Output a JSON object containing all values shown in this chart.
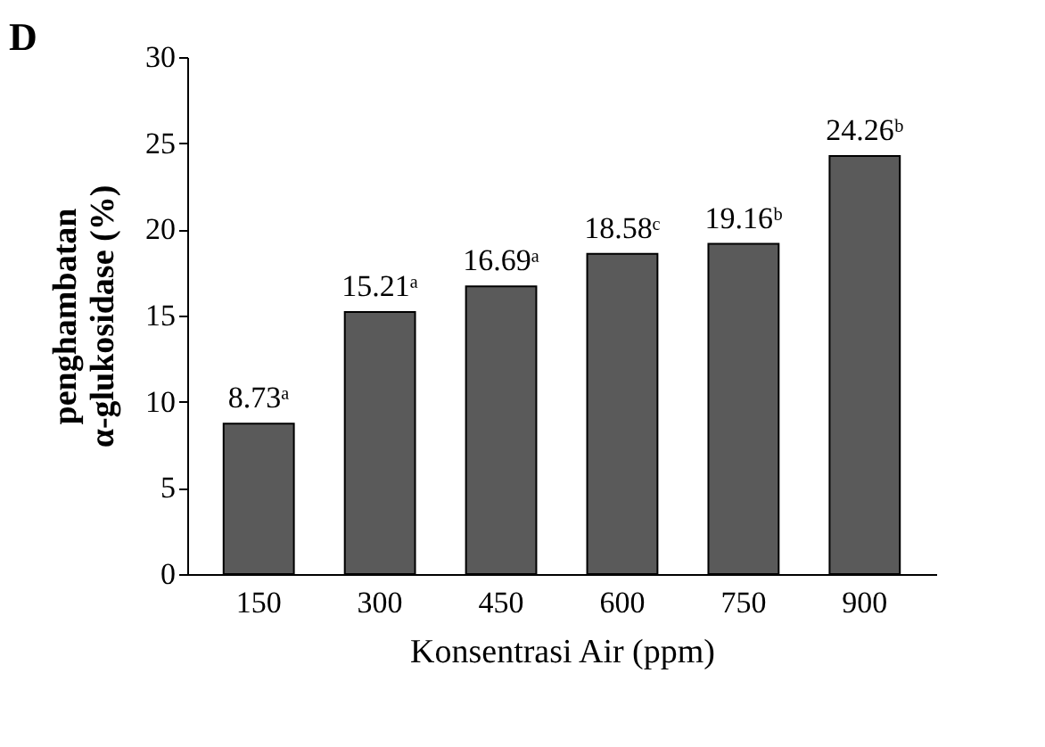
{
  "chart_data": {
    "type": "bar",
    "title": "D",
    "xlabel": "Konsentrasi Air (ppm)",
    "ylabel": "penghambatan\nα-glukosidase (%)",
    "categories": [
      "150",
      "300",
      "450",
      "600",
      "750",
      "900"
    ],
    "values": [
      8.73,
      15.21,
      16.69,
      18.58,
      19.16,
      24.26
    ],
    "value_labels": [
      "8.73ᵃ",
      "15.21ᵃ",
      "16.69ᵃ",
      "18.58ᶜ",
      "19.16ᵇ",
      "24.26ᵇ"
    ],
    "color": "#5a5a5a",
    "ylim": [
      0,
      30
    ],
    "yticks": [
      0,
      5,
      10,
      15,
      20,
      25,
      30
    ],
    "grid": false
  }
}
